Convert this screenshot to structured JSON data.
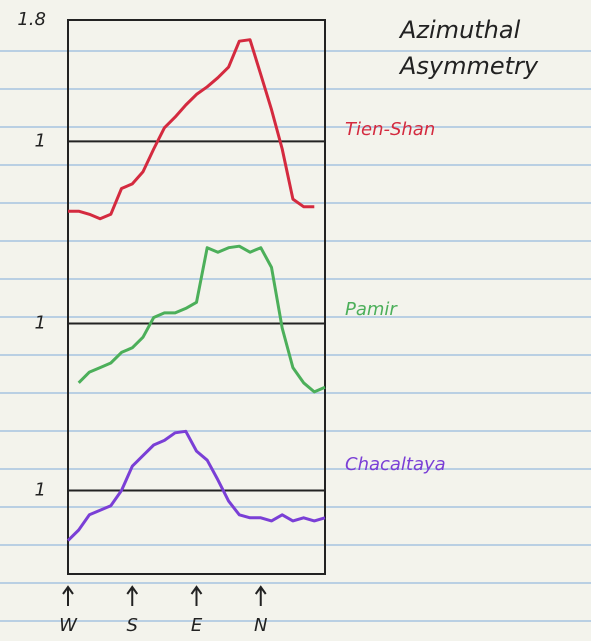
{
  "chart_data": [
    {
      "type": "line",
      "title": "Azimuthal Asymmetry",
      "x": [
        0,
        15,
        30,
        45,
        60,
        75,
        90,
        105,
        120,
        135,
        150,
        165,
        180,
        195,
        210,
        225,
        240,
        255,
        270,
        285,
        300,
        315,
        330,
        345,
        360
      ],
      "xlim": [
        0,
        360
      ],
      "ylim": [
        0.4,
        1.8
      ],
      "yticks": [
        1,
        1.8
      ],
      "series": [
        {
          "name": "Tien-Shan",
          "color": "#d42a3f",
          "values": [
            0.54,
            0.54,
            0.52,
            0.49,
            0.52,
            0.69,
            0.72,
            0.8,
            0.95,
            1.09,
            1.16,
            1.24,
            1.31,
            1.36,
            1.42,
            1.49,
            1.66,
            1.67,
            1.44,
            1.21,
            0.95,
            0.62,
            0.57,
            0.57,
            null
          ]
        }
      ]
    },
    {
      "type": "line",
      "x": [
        0,
        15,
        30,
        45,
        60,
        75,
        90,
        105,
        120,
        135,
        150,
        165,
        180,
        195,
        210,
        225,
        240,
        255,
        270,
        285,
        300,
        315,
        330,
        345,
        360
      ],
      "xlim": [
        0,
        360
      ],
      "ylim": [
        0.4,
        1.6
      ],
      "yticks": [
        1
      ],
      "series": [
        {
          "name": "Pamir",
          "color": "#4caf5a",
          "values": [
            null,
            0.61,
            0.68,
            0.71,
            0.74,
            0.81,
            0.84,
            0.91,
            1.04,
            1.07,
            1.07,
            1.1,
            1.14,
            1.5,
            1.47,
            1.5,
            1.51,
            1.47,
            1.5,
            1.37,
            0.97,
            0.71,
            0.61,
            0.55,
            0.58
          ]
        }
      ]
    },
    {
      "type": "line",
      "x": [
        0,
        15,
        30,
        45,
        60,
        75,
        90,
        105,
        120,
        135,
        150,
        165,
        180,
        195,
        210,
        225,
        240,
        255,
        270,
        285,
        300,
        315,
        330,
        345,
        360
      ],
      "xlim": [
        0,
        360
      ],
      "ylim": [
        0.45,
        1.5
      ],
      "yticks": [
        1
      ],
      "xticks": [
        {
          "value": 0,
          "label": "W"
        },
        {
          "value": 90,
          "label": "S"
        },
        {
          "value": 180,
          "label": "E"
        },
        {
          "value": 270,
          "label": "N"
        }
      ],
      "series": [
        {
          "name": "Chacaltaya",
          "color": "#7a3fd6",
          "values": [
            0.67,
            0.74,
            0.84,
            0.87,
            0.9,
            1.0,
            1.16,
            1.23,
            1.3,
            1.33,
            1.38,
            1.39,
            1.26,
            1.2,
            1.07,
            0.93,
            0.84,
            0.82,
            0.82,
            0.8,
            0.84,
            0.8,
            0.82,
            0.8,
            0.82
          ]
        }
      ]
    }
  ]
}
